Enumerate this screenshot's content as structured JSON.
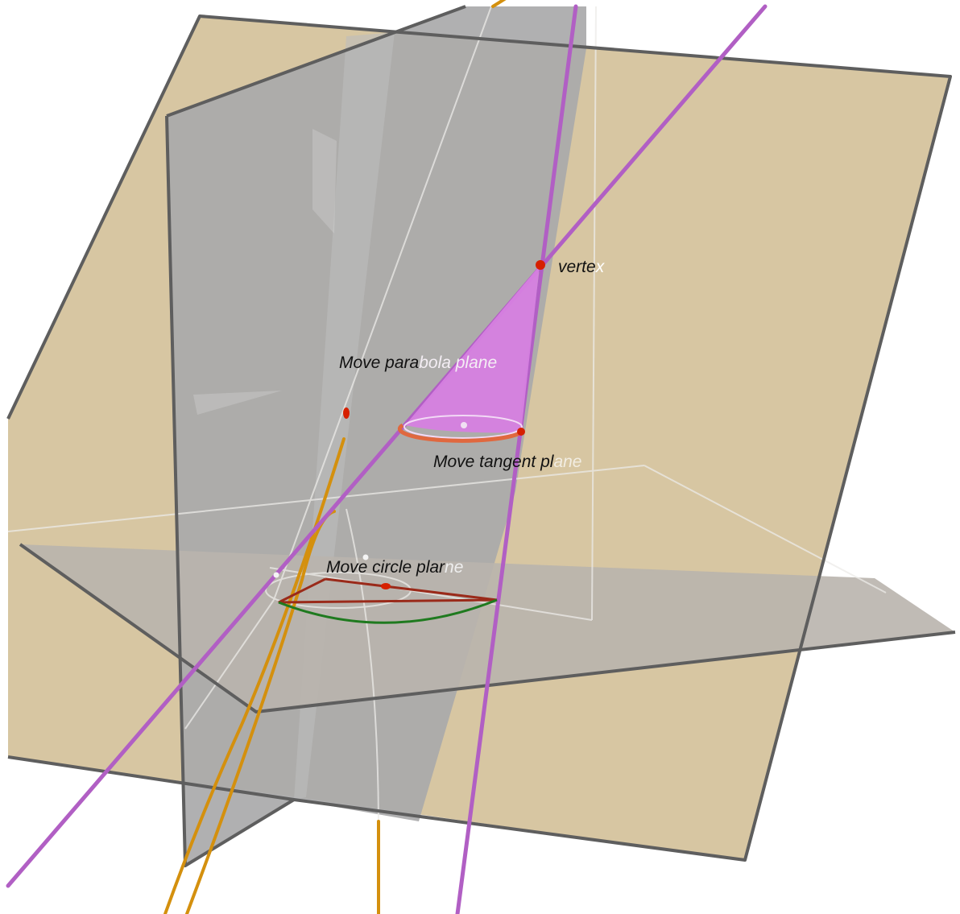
{
  "labels": {
    "vertex_a": "verte",
    "vertex_b": "x",
    "parabola_a": "Move para",
    "parabola_b": "bola plane",
    "tangent_a": "Move tangent pl",
    "tangent_b": "ane",
    "circle_a": "Move circle plar",
    "circle_b": "ne"
  },
  "colors": {
    "parabola_plane": "#d7c6a2",
    "vertical_plane": "#a9a9aa",
    "horizontal_plane": "#b9b4ad",
    "plane_edge": "#5e5e5e",
    "cone_generator": "#b15fc4",
    "cone_fill": "#d67fe0",
    "parabola_curve": "#d4900e",
    "point": "#d62000",
    "base_rim": "#e0683f",
    "chord": "#9a2a1a",
    "arc": "#1f7a1f",
    "faint_line": "#ecebe8"
  }
}
